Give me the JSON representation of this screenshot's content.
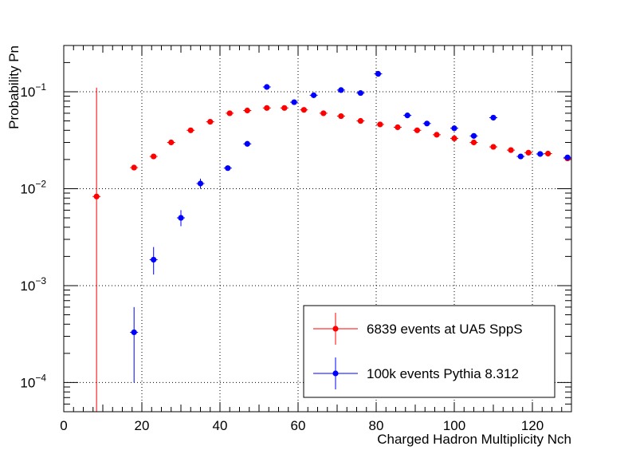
{
  "chart_data": {
    "type": "scatter",
    "yscale": "log",
    "xlabel": "Charged Hadron Multiplicity Nch",
    "ylabel": "Probability Pn",
    "xlim": [
      0,
      130
    ],
    "ylim": [
      5e-05,
      0.3
    ],
    "grid": true,
    "legend_position": "bottom-right",
    "x_ticks": [
      0,
      20,
      40,
      60,
      80,
      100,
      120
    ],
    "x_tick_labels": [
      "0",
      "20",
      "40",
      "60",
      "80",
      "100",
      "120"
    ],
    "y_ticks": [
      {
        "value": 0.0001,
        "base": "10",
        "exp": "−4"
      },
      {
        "value": 0.001,
        "base": "10",
        "exp": "−3"
      },
      {
        "value": 0.01,
        "base": "10",
        "exp": "−2"
      },
      {
        "value": 0.1,
        "base": "10",
        "exp": "−1"
      }
    ],
    "series": [
      {
        "name": "6839 events at UA5 SppS",
        "color": "#ff0000",
        "points": [
          {
            "x": 8.4,
            "y": 0.0083,
            "ylo": 5e-05,
            "yhi": 0.11
          },
          {
            "x": 18,
            "y": 0.0165
          },
          {
            "x": 23,
            "y": 0.0215
          },
          {
            "x": 27.5,
            "y": 0.03
          },
          {
            "x": 32.5,
            "y": 0.04
          },
          {
            "x": 37.5,
            "y": 0.049
          },
          {
            "x": 42.5,
            "y": 0.06
          },
          {
            "x": 47,
            "y": 0.064
          },
          {
            "x": 52,
            "y": 0.068
          },
          {
            "x": 56.5,
            "y": 0.068
          },
          {
            "x": 61.5,
            "y": 0.065
          },
          {
            "x": 66.5,
            "y": 0.06
          },
          {
            "x": 71,
            "y": 0.056
          },
          {
            "x": 76,
            "y": 0.05
          },
          {
            "x": 81,
            "y": 0.046
          },
          {
            "x": 85.5,
            "y": 0.043
          },
          {
            "x": 90.5,
            "y": 0.04
          },
          {
            "x": 95.5,
            "y": 0.036
          },
          {
            "x": 100,
            "y": 0.033
          },
          {
            "x": 105,
            "y": 0.03
          },
          {
            "x": 110,
            "y": 0.027
          },
          {
            "x": 114.5,
            "y": 0.025
          },
          {
            "x": 119,
            "y": 0.0235
          },
          {
            "x": 124,
            "y": 0.023
          },
          {
            "x": 129,
            "y": 0.0205
          }
        ]
      },
      {
        "name": "100k events Pythia 8.312",
        "color": "#0000ff",
        "points": [
          {
            "x": 18,
            "y": 0.00033,
            "ylo": 0.0001,
            "yhi": 0.0006
          },
          {
            "x": 23,
            "y": 0.00185,
            "ylo": 0.0013,
            "yhi": 0.0025
          },
          {
            "x": 30,
            "y": 0.005,
            "ylo": 0.0041,
            "yhi": 0.006
          },
          {
            "x": 35,
            "y": 0.0113,
            "ylo": 0.01,
            "yhi": 0.0127
          },
          {
            "x": 42,
            "y": 0.0163
          },
          {
            "x": 47,
            "y": 0.029
          },
          {
            "x": 52,
            "y": 0.112
          },
          {
            "x": 59,
            "y": 0.078
          },
          {
            "x": 64,
            "y": 0.092
          },
          {
            "x": 71,
            "y": 0.104
          },
          {
            "x": 76,
            "y": 0.097
          },
          {
            "x": 80.5,
            "y": 0.153
          },
          {
            "x": 88,
            "y": 0.057
          },
          {
            "x": 93,
            "y": 0.047
          },
          {
            "x": 100,
            "y": 0.042
          },
          {
            "x": 105,
            "y": 0.035
          },
          {
            "x": 110,
            "y": 0.054
          },
          {
            "x": 117,
            "y": 0.0215
          },
          {
            "x": 122,
            "y": 0.0228
          },
          {
            "x": 129,
            "y": 0.021
          }
        ]
      }
    ]
  }
}
